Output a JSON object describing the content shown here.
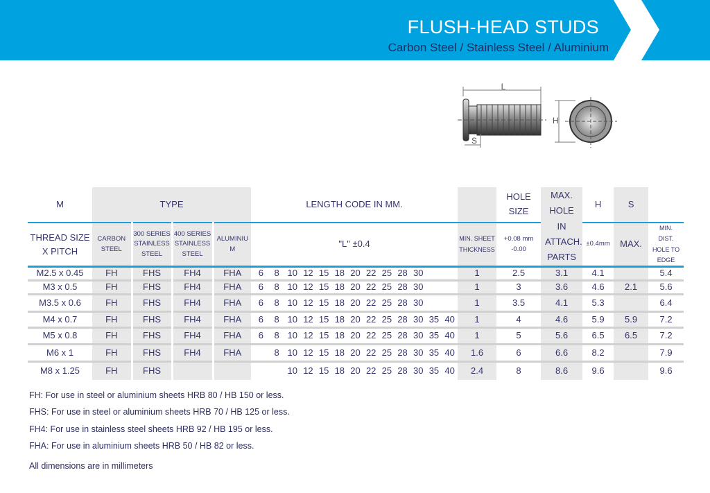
{
  "header": {
    "title": "FLUSH-HEAD STUDS",
    "subtitle": "Carbon Steel / Stainless Steel / Aluminium",
    "brand_color": "#00a3e0"
  },
  "drawing": {
    "label_l": "L",
    "label_h": "H",
    "label_s": "S"
  },
  "table": {
    "h1": {
      "m": "M",
      "type": "TYPE",
      "length": "LENGTH CODE IN MM.",
      "hole_size": "HOLE SIZE",
      "max_hole": "MAX. HOLE IN ATTACH. PARTS",
      "h": "H",
      "s": "S"
    },
    "h2": {
      "thread": "THREAD SIZE X PITCH",
      "carbon": "CARBON STEEL",
      "s300": "300 SERIES STAINLESS STEEL",
      "s400": "400 SERIES STAINLESS STEEL",
      "alum": "ALUMINIU M",
      "l": "\"L\" ±0.4",
      "min_sheet": "MIN. SHEET THICKNESS",
      "hole_tol": "+0.08 mm -0.00",
      "h_tol": "±0.4mm",
      "s_max": "MAX.",
      "min_dist": "MIN. DIST. HOLE TO EDGE"
    },
    "rows": [
      {
        "thread": "M2.5 x 0.45",
        "carbon": "FH",
        "s300": "FHS",
        "s400": "FH4",
        "alum": "FHA",
        "lengths": [
          "6",
          "8",
          "10",
          "12",
          "15",
          "18",
          "20",
          "22",
          "25",
          "28",
          "30"
        ],
        "min_sheet": "1",
        "hole": "2.5",
        "max_hole": "3.1",
        "h": "4.1",
        "s": "",
        "min_dist": "5.4"
      },
      {
        "thread": "M3 x 0.5",
        "carbon": "FH",
        "s300": "FHS",
        "s400": "FH4",
        "alum": "FHA",
        "lengths": [
          "6",
          "8",
          "10",
          "12",
          "15",
          "18",
          "20",
          "22",
          "25",
          "28",
          "30"
        ],
        "min_sheet": "1",
        "hole": "3",
        "max_hole": "3.6",
        "h": "4.6",
        "s": "2.1",
        "min_dist": "5.6"
      },
      {
        "thread": "M3.5 x 0.6",
        "carbon": "FH",
        "s300": "FHS",
        "s400": "FH4",
        "alum": "FHA",
        "lengths": [
          "6",
          "8",
          "10",
          "12",
          "15",
          "18",
          "20",
          "22",
          "25",
          "28",
          "30"
        ],
        "min_sheet": "1",
        "hole": "3.5",
        "max_hole": "4.1",
        "h": "5.3",
        "s": "",
        "min_dist": "6.4"
      },
      {
        "thread": "M4 x 0.7",
        "carbon": "FH",
        "s300": "FHS",
        "s400": "FH4",
        "alum": "FHA",
        "lengths": [
          "6",
          "8",
          "10",
          "12",
          "15",
          "18",
          "20",
          "22",
          "25",
          "28",
          "30",
          "35",
          "40"
        ],
        "min_sheet": "1",
        "hole": "4",
        "max_hole": "4.6",
        "h": "5.9",
        "s": "5.9",
        "min_dist": "7.2"
      },
      {
        "thread": "M5 x 0.8",
        "carbon": "FH",
        "s300": "FHS",
        "s400": "FH4",
        "alum": "FHA",
        "lengths": [
          "6",
          "8",
          "10",
          "12",
          "15",
          "18",
          "20",
          "22",
          "25",
          "28",
          "30",
          "35",
          "40"
        ],
        "min_sheet": "1",
        "hole": "5",
        "max_hole": "5.6",
        "h": "6.5",
        "s": "6.5",
        "min_dist": "7.2"
      },
      {
        "thread": "M6 x 1",
        "carbon": "FH",
        "s300": "FHS",
        "s400": "FH4",
        "alum": "FHA",
        "lengths": [
          "8",
          "10",
          "12",
          "15",
          "18",
          "20",
          "22",
          "25",
          "28",
          "30",
          "35",
          "40"
        ],
        "min_sheet": "1.6",
        "hole": "6",
        "max_hole": "6.6",
        "h": "8.2",
        "s": "",
        "min_dist": "7.9"
      },
      {
        "thread": "M8 x 1.25",
        "carbon": "FH",
        "s300": "FHS",
        "s400": "",
        "alum": "",
        "lengths": [
          "10",
          "12",
          "15",
          "18",
          "20",
          "22",
          "25",
          "28",
          "30",
          "35",
          "40"
        ],
        "min_sheet": "2.4",
        "hole": "8",
        "max_hole": "8.6",
        "h": "9.6",
        "s": "",
        "min_dist": "9.6"
      }
    ]
  },
  "notes": [
    "FH: For use in steel or aluminium sheets HRB 80 / HB 150 or less.",
    "FHS: For use in steel or aluminium sheets HRB 70 / HB 125 or less.",
    "FH4: For use in stainless steel sheets HRB 92 / HB 195 or less.",
    "FHA: For use in aluminium sheets HRB 50 / HB 82 or less.",
    "All dimensions are in millimeters"
  ]
}
